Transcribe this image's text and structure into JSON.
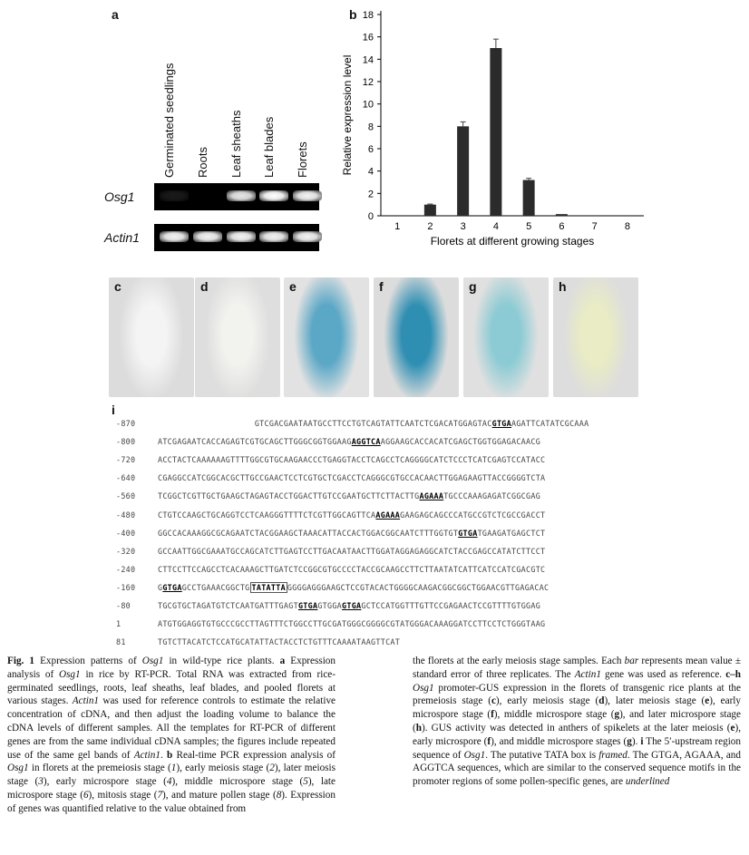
{
  "panel_a": {
    "label": "a",
    "lanes": [
      "Germinated seedlings",
      "Roots",
      "Leaf sheaths",
      "Leaf blades",
      "Florets"
    ],
    "genes": [
      "Osg1",
      "Actin1"
    ],
    "band_intensity": {
      "Osg1": [
        0.1,
        0.05,
        0.9,
        1.0,
        0.95
      ],
      "Actin1": [
        0.95,
        0.95,
        0.95,
        0.95,
        0.95
      ]
    }
  },
  "panel_b": {
    "label": "b"
  },
  "chart_data": {
    "type": "bar",
    "categories": [
      "1",
      "2",
      "3",
      "4",
      "5",
      "6",
      "7",
      "8"
    ],
    "values": [
      0,
      1.0,
      8.0,
      15.0,
      3.2,
      0.15,
      0,
      0
    ],
    "errors": [
      0,
      0.05,
      0.4,
      0.8,
      0.15,
      0.02,
      0,
      0
    ],
    "title": "",
    "xlabel": "Florets at different growing stages",
    "ylabel": "Relative expression level",
    "ylim": [
      0,
      18
    ],
    "yticks": [
      0,
      2,
      4,
      6,
      8,
      10,
      12,
      14,
      16,
      18
    ],
    "grid": false,
    "bar_color": "#2b2b2b"
  },
  "photos": [
    {
      "label": "c",
      "bg": "#dcdcdc",
      "tone": "#f4f4f4"
    },
    {
      "label": "d",
      "bg": "#dedede",
      "tone": "#f2f2ef"
    },
    {
      "label": "e",
      "bg": "#e2e2e2",
      "tone": "#5aa7c6"
    },
    {
      "label": "f",
      "bg": "#dcdcdc",
      "tone": "#2f8fb3"
    },
    {
      "label": "g",
      "bg": "#e0e0e0",
      "tone": "#8ccbd4"
    },
    {
      "label": "h",
      "bg": "#dddddd",
      "tone": "#e9ecc4"
    }
  ],
  "panel_i": {
    "label": "i"
  },
  "sequence": [
    {
      "num": "-870",
      "segs": [
        {
          "t": "                    GTCGACGAATAATGCCTTCCTGTCAGTATTCAATCTCGACATGGAGTAC"
        },
        {
          "t": "GTGA",
          "s": "bu"
        },
        {
          "t": "AGATTCATATCGCAAA"
        }
      ]
    },
    {
      "num": "-800",
      "segs": [
        {
          "t": "ATCGAGAATCACCAGAGTCGTGCAGCTTGGGCGGTGGAAG"
        },
        {
          "t": "AGGTCA",
          "s": "bu"
        },
        {
          "t": "AGGAAGCACCACATCGAGCTGGTGGAGACAACG"
        }
      ]
    },
    {
      "num": "-720",
      "segs": [
        {
          "t": "ACCTACTCAAAAAAGTTTTGGCGTGCAAGAACCCTGAGGTACCTCAGCCTCAGGGGCATCTCCCTCATCGAGTCCATACC"
        }
      ]
    },
    {
      "num": "-640",
      "segs": [
        {
          "t": "CGAGGCCATCGGCACGCTTGCCGAACTCCTCGTGCTCGACCTCAGGGCGTGCCACAACTTGGAGAAGTTACCGGGGTCTA"
        }
      ]
    },
    {
      "num": "-560",
      "segs": [
        {
          "t": "TCGGCTCGTTGCTGAAGCTAGAGTACCTGGACTTGTCCGAATGCTTCTTACTTG"
        },
        {
          "t": "AGAAA",
          "s": "bu"
        },
        {
          "t": "TGCCCAAAGAGATCGGCGAG"
        }
      ]
    },
    {
      "num": "-480",
      "segs": [
        {
          "t": "CTGTCCAAGCTGCAGGTCCTCAAGGGTTTTCTCGTTGGCAGTTCA"
        },
        {
          "t": "AGAAA",
          "s": "bu"
        },
        {
          "t": "GAAGAGCAGCCCATGCCGTCTCGCCGACCT"
        }
      ]
    },
    {
      "num": "-400",
      "segs": [
        {
          "t": "GGCCACAAAGGCGCAGAATCTACGGAAGCTAAACATTACCACTGGACGGCAATCTTTGGTGT"
        },
        {
          "t": "GTGA",
          "s": "bu"
        },
        {
          "t": "TGAAGATGAGCTCT"
        }
      ]
    },
    {
      "num": "-320",
      "segs": [
        {
          "t": "GCCAATTGGCGAAATGCCAGCATCTTGAGTCCTTGACAATAACTTGGATAGGAGAGGCATCTACCGAGCCATATCTTCCT"
        }
      ]
    },
    {
      "num": "-240",
      "segs": [
        {
          "t": "CTTCCTTCCAGCCTCACAAAGCTTGATCTCCGGCGTGCCCCTACCGCAAGCCTTCTTAATATCATTCATCCATCGACGTC"
        }
      ]
    },
    {
      "num": "-160",
      "segs": [
        {
          "t": "G"
        },
        {
          "t": "GTGA",
          "s": "bu"
        },
        {
          "t": "GCCTGAAACGGCTG"
        },
        {
          "t": "TATATTA",
          "s": "bx"
        },
        {
          "t": "GGGGAGGGAAGCTCCGTACACTGGGGCAAGACGGCGGCTGGAACGTTGAGACAC"
        }
      ]
    },
    {
      "num": "-80",
      "segs": [
        {
          "t": "TGCGTGCTAGATGTCTCAATGATTTGAGT"
        },
        {
          "t": "GTGA",
          "s": "bu"
        },
        {
          "t": "GTGGA"
        },
        {
          "t": "GTGA",
          "s": "bu"
        },
        {
          "t": "GCTCCATGGTTTGTTCCGAGAACTCCGTTTTGTGGAG"
        }
      ]
    },
    {
      "num": "1",
      "segs": [
        {
          "t": "ATGTGGAGGTGTGCCCGCCTTAGTTTCTGGCCTTGCGATGGGCGGGGCGTATGGGACAAAGGATCCTTCCTCTGGGTAAG"
        }
      ]
    },
    {
      "num": "81",
      "segs": [
        {
          "t": "TGTCTTACATCTCCATGCATATTACTACCTCTGTTTCAAAATAAGTTCAT"
        }
      ]
    }
  ],
  "caption_left": [
    {
      "t": "Fig. 1",
      "s": "b"
    },
    {
      "t": " Expression patterns of "
    },
    {
      "t": "Osg1",
      "s": "i"
    },
    {
      "t": " in wild-type rice plants. "
    },
    {
      "t": "a",
      "s": "b"
    },
    {
      "t": " Expression analysis of "
    },
    {
      "t": "Osg1",
      "s": "i"
    },
    {
      "t": " in rice by RT-PCR. Total RNA was extracted from rice-germinated seedlings, roots, leaf sheaths, leaf blades, and pooled florets at various stages. "
    },
    {
      "t": "Actin1",
      "s": "i"
    },
    {
      "t": " was used for reference controls to estimate the relative concentration of cDNA, and then adjust the loading volume to balance the cDNA levels of different samples. All the templates for RT-PCR of different genes are from the same individual cDNA samples; the figures include repeated use of the same gel bands of "
    },
    {
      "t": "Actin1",
      "s": "i"
    },
    {
      "t": ". "
    },
    {
      "t": "b",
      "s": "b"
    },
    {
      "t": " Real-time PCR expression analysis of "
    },
    {
      "t": "Osg1",
      "s": "i"
    },
    {
      "t": " in florets at the premeiosis stage ("
    },
    {
      "t": "1",
      "s": "i"
    },
    {
      "t": "), early meiosis stage ("
    },
    {
      "t": "2",
      "s": "i"
    },
    {
      "t": "), later meiosis stage ("
    },
    {
      "t": "3",
      "s": "i"
    },
    {
      "t": "), early microspore stage ("
    },
    {
      "t": "4",
      "s": "i"
    },
    {
      "t": "), middle microspore stage ("
    },
    {
      "t": "5",
      "s": "i"
    },
    {
      "t": "), late microspore stage ("
    },
    {
      "t": "6",
      "s": "i"
    },
    {
      "t": "), mitosis stage ("
    },
    {
      "t": "7",
      "s": "i"
    },
    {
      "t": "), and mature pollen stage ("
    },
    {
      "t": "8",
      "s": "i"
    },
    {
      "t": "). Expression of genes was quantified relative to the value obtained from"
    }
  ],
  "caption_right": [
    {
      "t": "the florets at the early meiosis stage samples. Each "
    },
    {
      "t": "bar",
      "s": "i"
    },
    {
      "t": " represents mean value ± standard error of three replicates. The "
    },
    {
      "t": "Actin1",
      "s": "i"
    },
    {
      "t": " gene was used as reference. "
    },
    {
      "t": "c–h",
      "s": "b"
    },
    {
      "t": " "
    },
    {
      "t": "Osg1",
      "s": "i"
    },
    {
      "t": " promoter-GUS expression in the florets of transgenic rice plants at the premeiosis stage ("
    },
    {
      "t": "c",
      "s": "b"
    },
    {
      "t": "), early meiosis stage ("
    },
    {
      "t": "d",
      "s": "b"
    },
    {
      "t": "), later meiosis stage ("
    },
    {
      "t": "e",
      "s": "b"
    },
    {
      "t": "), early microspore stage ("
    },
    {
      "t": "f",
      "s": "b"
    },
    {
      "t": "), middle microspore stage ("
    },
    {
      "t": "g",
      "s": "b"
    },
    {
      "t": "), and later microspore stage ("
    },
    {
      "t": "h",
      "s": "b"
    },
    {
      "t": "). GUS activity was detected in anthers of spikelets at the later meiosis ("
    },
    {
      "t": "e",
      "s": "b"
    },
    {
      "t": "), early microspore ("
    },
    {
      "t": "f",
      "s": "b"
    },
    {
      "t": "), and middle microspore stages ("
    },
    {
      "t": "g",
      "s": "b"
    },
    {
      "t": "). "
    },
    {
      "t": "i",
      "s": "b"
    },
    {
      "t": " The 5′-upstream region sequence of "
    },
    {
      "t": "Osg1",
      "s": "i"
    },
    {
      "t": ". The putative TATA box is "
    },
    {
      "t": "framed",
      "s": "i"
    },
    {
      "t": ". The GTGA, AGAAA, and AGGTCA sequences, which are similar to the conserved sequence motifs in the promoter regions of some pollen-specific genes, are "
    },
    {
      "t": "underlined",
      "s": "i"
    }
  ]
}
